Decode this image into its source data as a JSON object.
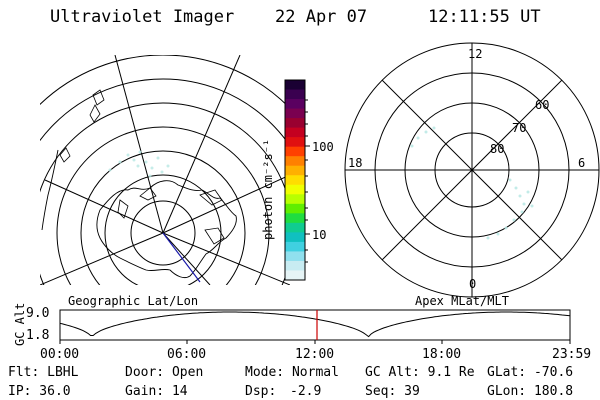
{
  "header": {
    "title": "Ultraviolet Imager",
    "date": "22 Apr 07",
    "time": "12:11:55 UT"
  },
  "colorbar": {
    "label": "photon cm⁻²s⁻¹",
    "ticks": [
      "100",
      "10"
    ],
    "colors": [
      "#1a0033",
      "#3a0050",
      "#5a0060",
      "#7a0050",
      "#990030",
      "#c40020",
      "#e01010",
      "#ff4000",
      "#ff8000",
      "#ffb000",
      "#ffdd00",
      "#f0ff00",
      "#b8ff00",
      "#60ee00",
      "#20dd40",
      "#10cc90",
      "#10c0c0",
      "#40d0e0",
      "#90e0ee",
      "#c8ecf2",
      "#e6f4f6"
    ]
  },
  "left_map": {
    "label": "Geographic Lat/Lon"
  },
  "right_map": {
    "label": "Apex MLat/MLT",
    "hour_labels": {
      "top": "12",
      "left": "18",
      "right": "6",
      "bottom": "0"
    },
    "lat_labels": [
      "60",
      "70",
      "80"
    ]
  },
  "timeline": {
    "ylabel": "GC Alt",
    "yticks": [
      "9.0",
      "1.8"
    ],
    "xticks": [
      "00:00",
      "06:00",
      "12:00",
      "18:00",
      "23:59"
    ],
    "current_time_marker": "12:11:55",
    "marker_color": "#cc0000"
  },
  "info": {
    "flt": "Flt: LBHL",
    "ip": "IP: 36.0",
    "door": "Door: Open",
    "gain": "Gain: 14",
    "mode": "Mode: Normal",
    "dsp_label": "Dsp:",
    "dsp_value": "-2.9",
    "gcalt": "GC Alt: 9.1 Re",
    "seq": "Seq: 39",
    "glat": "GLat: -70.6",
    "glon": "GLon: 180.8"
  }
}
